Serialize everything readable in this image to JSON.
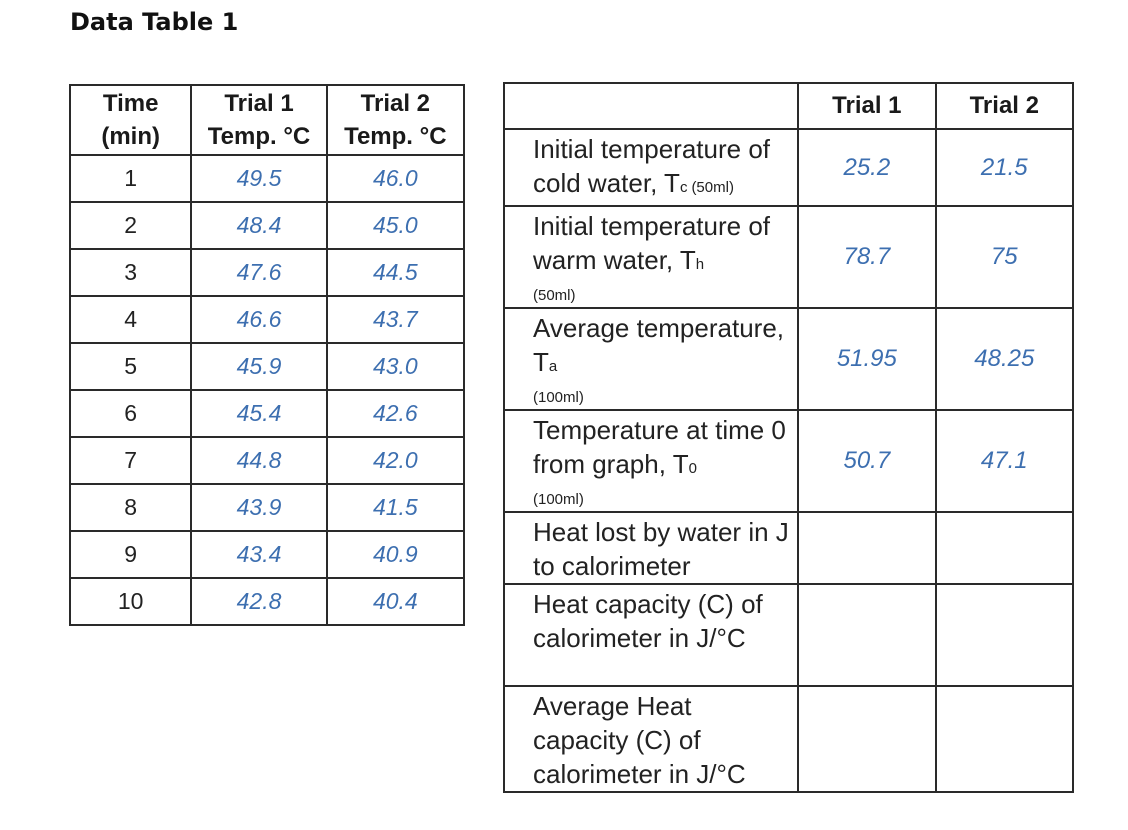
{
  "title": "Data Table 1",
  "time_table": {
    "headers": [
      {
        "line1": "Time",
        "line2": "(min)"
      },
      {
        "line1": "Trial 1",
        "line2": "Temp. °C"
      },
      {
        "line1": "Trial 2",
        "line2": "Temp. °C"
      }
    ],
    "rows": [
      {
        "time": "1",
        "trial1": "49.5",
        "trial2": "46.0"
      },
      {
        "time": "2",
        "trial1": "48.4",
        "trial2": "45.0"
      },
      {
        "time": "3",
        "trial1": "47.6",
        "trial2": "44.5"
      },
      {
        "time": "4",
        "trial1": "46.6",
        "trial2": "43.7"
      },
      {
        "time": "5",
        "trial1": "45.9",
        "trial2": "43.0"
      },
      {
        "time": "6",
        "trial1": "45.4",
        "trial2": "42.6"
      },
      {
        "time": "7",
        "trial1": "44.8",
        "trial2": "42.0"
      },
      {
        "time": "8",
        "trial1": "43.9",
        "trial2": "41.5"
      },
      {
        "time": "9",
        "trial1": "43.4",
        "trial2": "40.9"
      },
      {
        "time": "10",
        "trial1": "42.8",
        "trial2": "40.4"
      }
    ]
  },
  "results_table": {
    "headers": [
      "",
      "Trial 1",
      "Trial 2"
    ],
    "rows": [
      {
        "label_main": "Initial temperature of cold water, T",
        "label_sub": "c",
        "label_note": "(50ml)",
        "trial1": "25.2",
        "trial2": "21.5"
      },
      {
        "label_main": "Initial temperature of warm water, T",
        "label_sub": "h",
        "label_note": "(50ml)",
        "trial1": "78.7",
        "trial2": "75"
      },
      {
        "label_main": "Average temperature, T",
        "label_sub": "a",
        "label_note": "(100ml)",
        "trial1": "51.95",
        "trial2": "48.25"
      },
      {
        "label_main": "Temperature at time 0 from graph, T",
        "label_sub": "0",
        "label_note": "(100ml)",
        "trial1": "50.7",
        "trial2": "47.1"
      },
      {
        "label_main": "Heat lost by water in J to calorimeter",
        "label_sub": "",
        "label_note": "",
        "trial1": "",
        "trial2": ""
      },
      {
        "label_main": "Heat capacity (C) of calorimeter in J/°C",
        "label_sub": "",
        "label_note": "",
        "trial1": "",
        "trial2": ""
      },
      {
        "label_main": "Average Heat capacity (C) of calorimeter in J/°C",
        "label_sub": "",
        "label_note": "",
        "trial1": "",
        "trial2": ""
      }
    ]
  }
}
